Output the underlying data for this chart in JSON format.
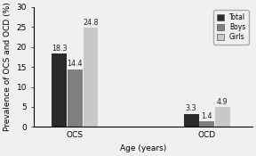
{
  "groups": [
    "OCS",
    "OCD"
  ],
  "categories": [
    "Total",
    "Boys",
    "Girls"
  ],
  "values": {
    "OCS": [
      18.3,
      14.4,
      24.8
    ],
    "OCD": [
      3.3,
      1.4,
      4.9
    ]
  },
  "bar_colors": [
    "#2b2b2b",
    "#808080",
    "#c8c8c8"
  ],
  "ylim": [
    0,
    30
  ],
  "yticks": [
    0,
    5,
    10,
    15,
    20,
    25,
    30
  ],
  "xlabel": "Age (years)",
  "ylabel": "Prevalence of OCS and OCD (%)",
  "legend_labels": [
    "Total",
    "Boys",
    "Girls"
  ],
  "bar_width": 0.18,
  "label_fontsize": 6.5,
  "tick_fontsize": 6.5,
  "value_fontsize": 5.8,
  "background_color": "#f0f0f0"
}
